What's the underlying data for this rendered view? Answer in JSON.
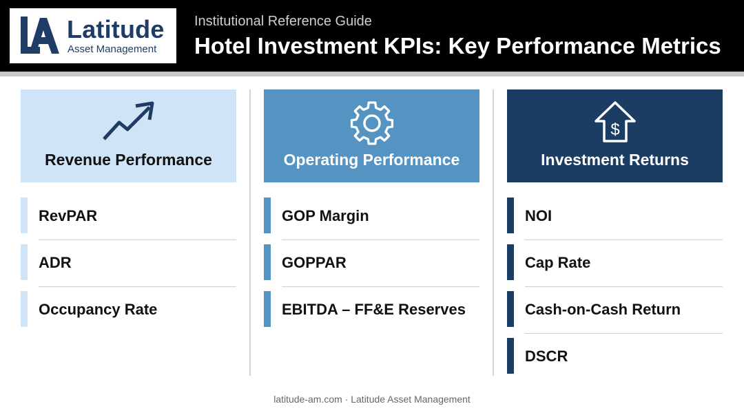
{
  "brand": {
    "name": "Latitude",
    "subtitle": "Asset Management",
    "color": "#1f3c66"
  },
  "header": {
    "subtitle": "Institutional Reference Guide",
    "title": "Hotel Investment KPIs: Key Performance Metrics"
  },
  "columns": [
    {
      "title": "Revenue Performance",
      "icon": "trend-up-arrow-icon",
      "card_bg": "#cfe4f6",
      "text_color": "#111111",
      "bar_color": "#cfe4f6",
      "items": [
        "RevPAR",
        "ADR",
        "Occupancy Rate"
      ]
    },
    {
      "title": "Operating Performance",
      "icon": "gear-icon",
      "card_bg": "#5593c2",
      "text_color": "#ffffff",
      "bar_color": "#5593c2",
      "items": [
        "GOP Margin",
        "GOPPAR",
        "EBITDA – FF&E Reserves"
      ]
    },
    {
      "title": "Investment Returns",
      "icon": "house-dollar-icon",
      "card_bg": "#1c3d63",
      "text_color": "#ffffff",
      "bar_color": "#1c3d63",
      "items": [
        "NOI",
        "Cap Rate",
        "Cash-on-Cash Return",
        "DSCR"
      ]
    }
  ],
  "footer": {
    "text": "latitude-am.com · Latitude Asset Management"
  }
}
